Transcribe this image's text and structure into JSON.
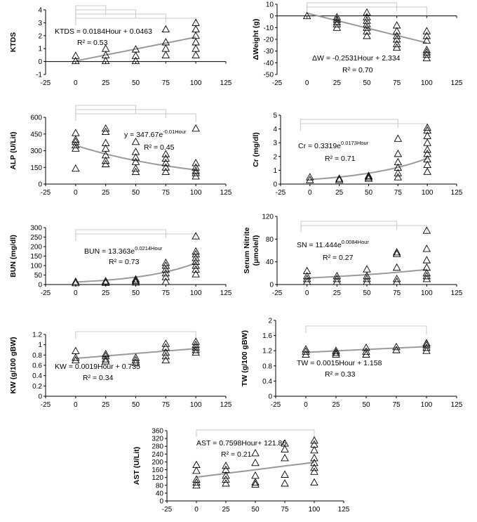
{
  "chart_data": [
    {
      "type": "scatter",
      "id": "ktds",
      "ylabel": "KTDS",
      "xlim": [
        -25,
        125
      ],
      "ylim": [
        -1,
        4
      ],
      "xticks": [
        "-25",
        "0",
        "25",
        "50",
        "75",
        "100",
        "125"
      ],
      "yticks": [
        "-1",
        "0",
        "1",
        "2",
        "3",
        "4"
      ],
      "points": [
        [
          0,
          0.05
        ],
        [
          0,
          0.45
        ],
        [
          25,
          0.05
        ],
        [
          25,
          0.5
        ],
        [
          25,
          1.0
        ],
        [
          50,
          0.05
        ],
        [
          50,
          0.45
        ],
        [
          50,
          0.95
        ],
        [
          75,
          0.5
        ],
        [
          75,
          1.0
        ],
        [
          75,
          1.5
        ],
        [
          75,
          2.5
        ],
        [
          100,
          0.5
        ],
        [
          100,
          1.0
        ],
        [
          100,
          1.5
        ],
        [
          100,
          2.0
        ],
        [
          100,
          2.5
        ],
        [
          100,
          3.0
        ]
      ],
      "trend": {
        "kind": "linear",
        "a": 0.0184,
        "b": 0.0463,
        "x": [
          0,
          100
        ]
      },
      "equation": "KTDS = 0.0184Hour + 0.0463",
      "r2": "R² = 0.53",
      "brackets": [
        [
          0,
          25
        ],
        [
          0,
          50
        ],
        [
          0,
          75
        ],
        [
          0,
          100
        ]
      ]
    },
    {
      "type": "scatter",
      "id": "weight",
      "ylabel": "ΔWeight (g)",
      "xlim": [
        -25,
        125
      ],
      "ylim": [
        -50,
        10
      ],
      "xticks": [
        "-25",
        "0",
        "25",
        "50",
        "75",
        "100",
        "125"
      ],
      "yticks": [
        "-50",
        "-40",
        "-30",
        "-20",
        "-10",
        "0",
        "10"
      ],
      "points": [
        [
          0,
          0
        ],
        [
          25,
          -1
        ],
        [
          25,
          -3
        ],
        [
          25,
          -5
        ],
        [
          25,
          -7
        ],
        [
          25,
          -10
        ],
        [
          50,
          3
        ],
        [
          50,
          -1
        ],
        [
          50,
          -4
        ],
        [
          50,
          -7
        ],
        [
          50,
          -10
        ],
        [
          50,
          -13
        ],
        [
          50,
          -17
        ],
        [
          75,
          -8
        ],
        [
          75,
          -13
        ],
        [
          75,
          -17
        ],
        [
          75,
          -20
        ],
        [
          75,
          -24
        ],
        [
          75,
          -27
        ],
        [
          100,
          -13
        ],
        [
          100,
          -17
        ],
        [
          100,
          -21
        ],
        [
          100,
          -29
        ],
        [
          100,
          -31
        ],
        [
          100,
          -33
        ],
        [
          100,
          -36
        ]
      ],
      "trend": {
        "kind": "linear",
        "a": -0.2531,
        "b": 2.334,
        "x": [
          0,
          100
        ]
      },
      "equation": "ΔW = -0.2531Hour + 2.334",
      "r2": "R² = 0.70",
      "brackets": [
        [
          0,
          75
        ],
        [
          0,
          100
        ]
      ]
    },
    {
      "type": "scatter",
      "id": "alp",
      "ylabel": "ALP (U/Lit)",
      "xlim": [
        -25,
        125
      ],
      "ylim": [
        0,
        600
      ],
      "xticks": [
        "-25",
        "0",
        "25",
        "50",
        "75",
        "100",
        "125"
      ],
      "yticks": [
        "0",
        "150",
        "300",
        "450",
        "600"
      ],
      "points": [
        [
          0,
          140
        ],
        [
          0,
          320
        ],
        [
          0,
          350
        ],
        [
          0,
          380
        ],
        [
          0,
          400
        ],
        [
          0,
          460
        ],
        [
          25,
          180
        ],
        [
          25,
          210
        ],
        [
          25,
          260
        ],
        [
          25,
          320
        ],
        [
          25,
          370
        ],
        [
          25,
          470
        ],
        [
          25,
          500
        ],
        [
          50,
          110
        ],
        [
          50,
          140
        ],
        [
          50,
          200
        ],
        [
          50,
          240
        ],
        [
          50,
          290
        ],
        [
          50,
          380
        ],
        [
          75,
          110
        ],
        [
          75,
          150
        ],
        [
          75,
          190
        ],
        [
          75,
          230
        ],
        [
          75,
          270
        ],
        [
          100,
          70
        ],
        [
          100,
          100
        ],
        [
          100,
          120
        ],
        [
          100,
          150
        ],
        [
          100,
          190
        ],
        [
          100,
          500
        ]
      ],
      "trend": {
        "kind": "exp",
        "a": 347.67,
        "k": -0.01,
        "x": [
          0,
          100
        ]
      },
      "equation": "y = 347.67e",
      "eq_sup": "-0.01Hour",
      "r2": "R² = 0.45",
      "brackets": [
        [
          0,
          50
        ],
        [
          0,
          75
        ],
        [
          0,
          100
        ]
      ]
    },
    {
      "type": "scatter",
      "id": "cr",
      "ylabel": "Cr (mg/dl)",
      "xlim": [
        -25,
        125
      ],
      "ylim": [
        0,
        5
      ],
      "xticks": [
        "-25",
        "0",
        "25",
        "50",
        "75",
        "100",
        "125"
      ],
      "yticks": [
        "0",
        "1",
        "2",
        "3",
        "4",
        "5"
      ],
      "points": [
        [
          0,
          0.3
        ],
        [
          0,
          0.5
        ],
        [
          25,
          0.3
        ],
        [
          25,
          0.4
        ],
        [
          50,
          0.4
        ],
        [
          50,
          0.5
        ],
        [
          50,
          0.6
        ],
        [
          75,
          0.5
        ],
        [
          75,
          0.8
        ],
        [
          75,
          1.2
        ],
        [
          75,
          1.6
        ],
        [
          75,
          2.2
        ],
        [
          75,
          3.3
        ],
        [
          100,
          0.9
        ],
        [
          100,
          1.4
        ],
        [
          100,
          1.8
        ],
        [
          100,
          2.2
        ],
        [
          100,
          2.5
        ],
        [
          100,
          3.0
        ],
        [
          100,
          3.5
        ],
        [
          100,
          3.9
        ],
        [
          100,
          4.1
        ]
      ],
      "trend": {
        "kind": "exp",
        "a": 0.3319,
        "k": 0.0173,
        "x": [
          0,
          100
        ]
      },
      "equation": "Cr = 0.3319e",
      "eq_sup": "0.0173Hour",
      "r2": "R² = 0.71",
      "brackets": [
        [
          -8,
          75
        ],
        [
          -8,
          100
        ]
      ]
    },
    {
      "type": "scatter",
      "id": "bun",
      "ylabel": "BUN (mg/dl)",
      "xlim": [
        -25,
        125
      ],
      "ylim": [
        0,
        300
      ],
      "xticks": [
        "-25",
        "0",
        "25",
        "50",
        "75",
        "100",
        "125"
      ],
      "yticks": [
        "0",
        "50",
        "100",
        "150",
        "200",
        "250",
        "300"
      ],
      "points": [
        [
          0,
          8
        ],
        [
          0,
          15
        ],
        [
          25,
          10
        ],
        [
          25,
          18
        ],
        [
          50,
          12
        ],
        [
          50,
          20
        ],
        [
          50,
          28
        ],
        [
          75,
          15
        ],
        [
          75,
          40
        ],
        [
          75,
          60
        ],
        [
          75,
          80
        ],
        [
          75,
          100
        ],
        [
          75,
          115
        ],
        [
          100,
          55
        ],
        [
          100,
          80
        ],
        [
          100,
          100
        ],
        [
          100,
          120
        ],
        [
          100,
          140
        ],
        [
          100,
          160
        ],
        [
          100,
          175
        ],
        [
          100,
          255
        ]
      ],
      "trend": {
        "kind": "exp",
        "a": 13.363,
        "k": 0.0214,
        "x": [
          0,
          100
        ]
      },
      "equation": "BUN = 13.363e",
      "eq_sup": "0.0214Hour",
      "r2": "R² = 0.73",
      "brackets": [
        [
          0,
          75
        ],
        [
          0,
          100
        ]
      ]
    },
    {
      "type": "scatter",
      "id": "nitrite",
      "ylabel": "Serum Nitrite",
      "ylabel2": "(μmole/l)",
      "xlim": [
        -25,
        125
      ],
      "ylim": [
        0,
        120
      ],
      "xticks": [
        "-25",
        "0",
        "25",
        "50",
        "75",
        "100",
        "125"
      ],
      "yticks": [
        "0",
        "40",
        "80",
        "120"
      ],
      "points": [
        [
          0,
          5
        ],
        [
          0,
          10
        ],
        [
          0,
          15
        ],
        [
          0,
          24
        ],
        [
          25,
          5
        ],
        [
          25,
          10
        ],
        [
          25,
          15
        ],
        [
          50,
          5
        ],
        [
          50,
          10
        ],
        [
          50,
          15
        ],
        [
          50,
          27
        ],
        [
          75,
          5
        ],
        [
          75,
          10
        ],
        [
          75,
          30
        ],
        [
          75,
          54
        ],
        [
          75,
          57
        ],
        [
          100,
          10
        ],
        [
          100,
          15
        ],
        [
          100,
          20
        ],
        [
          100,
          30
        ],
        [
          100,
          43
        ],
        [
          100,
          63
        ],
        [
          100,
          95
        ]
      ],
      "trend": {
        "kind": "exp",
        "a": 11.444,
        "k": 0.0084,
        "x": [
          0,
          100
        ]
      },
      "equation": "SN = 11.444e",
      "eq_sup": "0.0084Hour",
      "r2": "R² = 0.27",
      "brackets": [
        [
          -5,
          75
        ],
        [
          -5,
          100
        ]
      ]
    },
    {
      "type": "scatter",
      "id": "kw",
      "ylabel": "KW (g/100 gBW)",
      "xlim": [
        -25,
        125
      ],
      "ylim": [
        0,
        1.2
      ],
      "xticks": [
        "-25",
        "0",
        "25",
        "50",
        "75",
        "100",
        "125"
      ],
      "yticks": [
        "0",
        "0.2",
        "0.4",
        "0.6",
        "0.8",
        "1",
        "1.2"
      ],
      "points": [
        [
          0,
          0.7
        ],
        [
          0,
          0.75
        ],
        [
          0,
          0.88
        ],
        [
          25,
          0.68
        ],
        [
          25,
          0.72
        ],
        [
          25,
          0.78
        ],
        [
          25,
          0.82
        ],
        [
          50,
          0.65
        ],
        [
          50,
          0.7
        ],
        [
          50,
          0.75
        ],
        [
          75,
          0.7
        ],
        [
          75,
          0.78
        ],
        [
          75,
          0.85
        ],
        [
          75,
          0.95
        ],
        [
          75,
          1.02
        ],
        [
          100,
          0.85
        ],
        [
          100,
          0.9
        ],
        [
          100,
          0.95
        ],
        [
          100,
          1.0
        ],
        [
          100,
          1.06
        ]
      ],
      "trend": {
        "kind": "linear",
        "a": 0.0019,
        "b": 0.735,
        "x": [
          0,
          100
        ]
      },
      "equation": "KW = 0.0019Hour + 0.735",
      "r2": "R² = 0.34",
      "brackets": [
        [
          0,
          100
        ]
      ]
    },
    {
      "type": "scatter",
      "id": "tw",
      "ylabel": "TW (g/100 gBW)",
      "xlim": [
        -25,
        125
      ],
      "ylim": [
        0,
        2
      ],
      "xticks": [
        "-25",
        "0",
        "25",
        "50",
        "75",
        "100",
        "125"
      ],
      "yticks": [
        "0",
        "0.4",
        "0.8",
        "1.2",
        "1.6",
        "2"
      ],
      "points": [
        [
          0,
          1.1
        ],
        [
          0,
          1.18
        ],
        [
          0,
          1.24
        ],
        [
          25,
          1.1
        ],
        [
          25,
          1.15
        ],
        [
          25,
          1.2
        ],
        [
          50,
          1.1
        ],
        [
          50,
          1.18
        ],
        [
          50,
          1.28
        ],
        [
          75,
          1.22
        ],
        [
          75,
          1.3
        ],
        [
          100,
          1.2
        ],
        [
          100,
          1.28
        ],
        [
          100,
          1.35
        ],
        [
          100,
          1.4
        ]
      ],
      "trend": {
        "kind": "linear",
        "a": 0.0015,
        "b": 1.158,
        "x": [
          0,
          100
        ]
      },
      "equation": "TW = 0.0015Hour + 1.158",
      "r2": "R² = 0.33",
      "brackets": [
        [
          0,
          100
        ]
      ]
    },
    {
      "type": "scatter",
      "id": "ast",
      "ylabel": "AST (U/Lit)",
      "xlim": [
        -25,
        125
      ],
      "ylim": [
        0,
        360
      ],
      "xticks": [
        "-25",
        "0",
        "25",
        "50",
        "75",
        "100",
        "125"
      ],
      "yticks": [
        "0",
        "40",
        "80",
        "120",
        "160",
        "200",
        "240",
        "280",
        "320",
        "360"
      ],
      "points": [
        [
          0,
          80
        ],
        [
          0,
          95
        ],
        [
          0,
          110
        ],
        [
          0,
          155
        ],
        [
          0,
          185
        ],
        [
          25,
          90
        ],
        [
          25,
          110
        ],
        [
          25,
          130
        ],
        [
          25,
          160
        ],
        [
          25,
          180
        ],
        [
          50,
          85
        ],
        [
          50,
          95
        ],
        [
          50,
          130
        ],
        [
          50,
          195
        ],
        [
          50,
          245
        ],
        [
          75,
          90
        ],
        [
          75,
          135
        ],
        [
          75,
          220
        ],
        [
          75,
          265
        ],
        [
          75,
          295
        ],
        [
          100,
          95
        ],
        [
          100,
          150
        ],
        [
          100,
          170
        ],
        [
          100,
          195
        ],
        [
          100,
          220
        ],
        [
          100,
          260
        ],
        [
          100,
          290
        ],
        [
          100,
          310
        ]
      ],
      "trend": {
        "kind": "linear",
        "a": 0.7598,
        "b": 121.86,
        "x": [
          0,
          100
        ]
      },
      "equation": "AST = 0.7598Hour+ 121.86",
      "r2": "R² = 0.21",
      "brackets": [
        [
          0,
          100
        ]
      ]
    }
  ]
}
